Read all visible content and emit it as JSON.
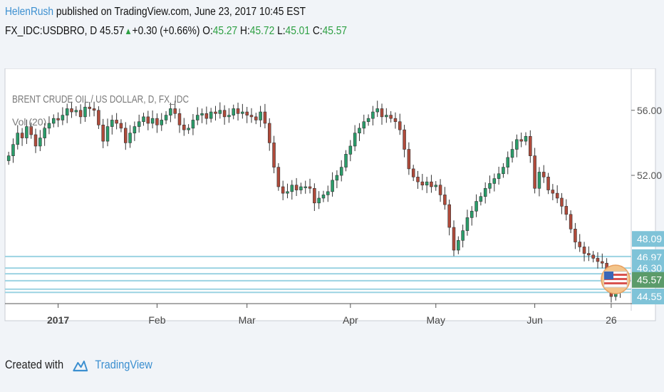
{
  "header": {
    "author": "HelenRush",
    "published_text": "published on TradingView.com, June 23, 2017 10:45 EST"
  },
  "quote": {
    "symbol": "FX_IDC:USDBRO, D",
    "last": "45.57",
    "change_icon": "triangle-up-icon",
    "change": "+0.30 (+0.66%)",
    "open_label": "O:",
    "open": "45.27",
    "high_label": "H:",
    "high": "45.72",
    "low_label": "L:",
    "low": "45.01",
    "close_label": "C:",
    "close": "45.57"
  },
  "footer": {
    "created_with": "Created with",
    "brand": "TradingView",
    "logo_icon": "tradingview-logo-icon"
  },
  "colors": {
    "up": "#2a9d6a",
    "down": "#b04a3a",
    "band": "#9cd3e2",
    "price_tag": "#7fc3d8",
    "last_tag": "#5b9b6a",
    "accent": "#3b8fd0"
  },
  "chart_data": {
    "type": "candlestick",
    "title": "BRENT CRUDE OIL / US DOLLAR, D, FX_IDC",
    "indicator_label": "Vol (20)",
    "y_ticks": [
      "56.00",
      "52.00"
    ],
    "y_range": [
      44.2,
      58.4
    ],
    "price_tags": [
      {
        "label": "48.09",
        "value": 48.09
      },
      {
        "label": "46.97",
        "value": 46.97
      },
      {
        "label": "46.30",
        "value": 46.3
      },
      {
        "label": "45.57",
        "value": 45.57,
        "last": true
      },
      {
        "label": "44.55",
        "value": 44.55
      }
    ],
    "horizontal_levels": [
      47.01,
      46.3,
      45.95,
      45.52,
      45.0,
      44.8
    ],
    "x_ticks": [
      {
        "label": "2017",
        "index": 11,
        "bold": true
      },
      {
        "label": "Feb",
        "index": 33
      },
      {
        "label": "Mar",
        "index": 53
      },
      {
        "label": "Apr",
        "index": 76
      },
      {
        "label": "May",
        "index": 95
      },
      {
        "label": "Jun",
        "index": 117
      },
      {
        "label": "26",
        "index": 134
      }
    ],
    "closes": [
      53.2,
      53.9,
      54.6,
      54.3,
      55.0,
      54.5,
      53.8,
      54.3,
      54.9,
      55.2,
      55.5,
      55.4,
      55.7,
      56.1,
      55.9,
      56.0,
      55.6,
      56.2,
      56.1,
      56.0,
      55.1,
      54.1,
      55.0,
      55.4,
      55.2,
      54.9,
      54.0,
      54.6,
      55.0,
      55.3,
      55.6,
      55.2,
      55.5,
      55.1,
      55.4,
      55.7,
      56.1,
      55.8,
      55.1,
      54.8,
      54.9,
      55.4,
      55.7,
      55.8,
      55.5,
      55.9,
      55.8,
      56.0,
      55.6,
      55.7,
      56.1,
      55.8,
      55.9,
      55.7,
      55.6,
      55.4,
      55.9,
      55.2,
      54.0,
      52.5,
      51.3,
      50.9,
      51.0,
      51.4,
      51.1,
      51.3,
      51.3,
      51.2,
      50.3,
      50.6,
      50.8,
      51.0,
      51.7,
      52.0,
      52.5,
      53.3,
      53.8,
      54.6,
      54.9,
      55.3,
      55.5,
      55.9,
      56.1,
      55.6,
      55.7,
      55.5,
      55.3,
      54.8,
      53.6,
      52.4,
      51.9,
      51.6,
      51.4,
      51.6,
      51.3,
      51.4,
      50.8,
      50.2,
      48.8,
      47.4,
      48.0,
      48.6,
      49.4,
      49.8,
      50.4,
      50.7,
      51.2,
      51.5,
      51.8,
      52.1,
      52.5,
      53.1,
      53.6,
      54.2,
      54.1,
      54.4,
      53.2,
      51.2,
      52.2,
      51.9,
      51.1,
      50.9,
      50.6,
      50.1,
      49.6,
      48.7,
      47.9,
      47.6,
      47.2,
      47.1,
      46.9,
      46.7,
      46.6,
      45.4,
      44.55,
      44.9,
      45.27,
      45.57
    ],
    "last_close": 45.57
  }
}
